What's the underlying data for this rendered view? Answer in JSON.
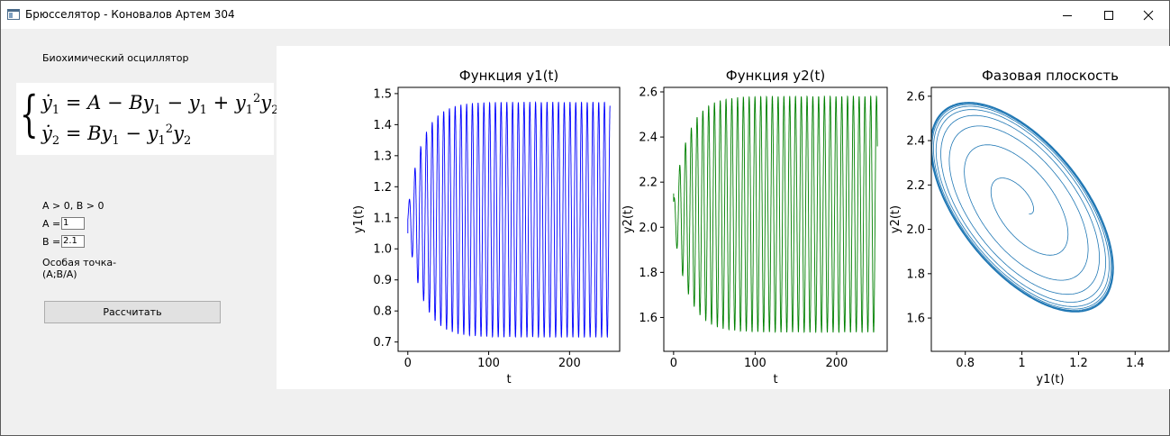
{
  "window": {
    "title": "Брюсселятор - Коновалов Артем 304",
    "controls": [
      "minimize-icon",
      "maximize-icon",
      "close-icon"
    ]
  },
  "left": {
    "heading": "Биохимический осциллятор",
    "conditions": "A > 0, B > 0",
    "a_label": "A =",
    "a_value": "1",
    "b_label": "B =",
    "b_value": "2.1",
    "singular_line1": "Особая точка-",
    "singular_line2": "(A;B/A)",
    "calc_button": "Рассчитать"
  },
  "equation": {
    "line1": {
      "lhs": "y",
      "sub": "1",
      "rhs_a": " = A − By",
      "rhs_b": " − y",
      "rhs_c": " + y",
      "sup": "2",
      "rhs_d": "y"
    },
    "line2": {
      "lhs": "y",
      "sub": "2",
      "rhs_a": " = By",
      "rhs_b": " − y",
      "sup": "2",
      "rhs_c": "y"
    }
  },
  "chart_data": [
    {
      "type": "line",
      "title": "Функция y1(t)",
      "xlabel": "t",
      "ylabel": "y1(t)",
      "xlim": [
        -12,
        262
      ],
      "ylim": [
        0.67,
        1.52
      ],
      "xticks": [
        0,
        100,
        200
      ],
      "yticks": [
        0.7,
        0.8,
        0.9,
        1.0,
        1.1,
        1.2,
        1.3,
        1.4,
        1.5
      ],
      "ytick_labels": [
        "0.7",
        "0.8",
        "0.9",
        "1.0",
        "1.1",
        "1.2",
        "1.3",
        "1.4",
        "1.5"
      ],
      "color": "#0000ff",
      "series": [
        {
          "t_end": 250,
          "period": 7.1,
          "steady_min": 0.716,
          "steady_max": 1.472,
          "start": 1.05,
          "start_amp_frac": 0.08
        }
      ]
    },
    {
      "type": "line",
      "title": "Функция y2(t)",
      "xlabel": "t",
      "ylabel": "y2(t)",
      "xlim": [
        -12,
        262
      ],
      "ylim": [
        1.45,
        2.62
      ],
      "xticks": [
        0,
        100,
        200
      ],
      "yticks": [
        1.6,
        1.8,
        2.0,
        2.2,
        2.4,
        2.6
      ],
      "ytick_labels": [
        "1.6",
        "1.8",
        "2.0",
        "2.2",
        "2.4",
        "2.6"
      ],
      "color": "#008000",
      "series": [
        {
          "t_end": 250,
          "period": 7.1,
          "steady_min": 1.535,
          "steady_max": 2.58,
          "start": 2.15,
          "end": 2.19,
          "start_amp_frac": 0.11
        }
      ]
    },
    {
      "type": "line",
      "title": "Фазовая плоскость",
      "xlabel": "y1(t)",
      "ylabel": "y2(t)",
      "xlim": [
        0.68,
        1.52
      ],
      "ylim": [
        1.45,
        2.64
      ],
      "xticks": [
        0.8,
        1.0,
        1.2,
        1.4
      ],
      "yticks": [
        1.6,
        1.8,
        2.0,
        2.2,
        2.4,
        2.6
      ],
      "ytick_labels": [
        "1.6",
        "1.8",
        "2.0",
        "2.2",
        "2.4",
        "2.6"
      ],
      "color": "#1f77b4",
      "series": [
        {
          "center": [
            1.0,
            2.1
          ],
          "start": [
            1.05,
            2.15
          ],
          "y1_range": [
            0.716,
            1.472
          ],
          "y2_range": [
            1.535,
            2.58
          ]
        }
      ]
    }
  ]
}
